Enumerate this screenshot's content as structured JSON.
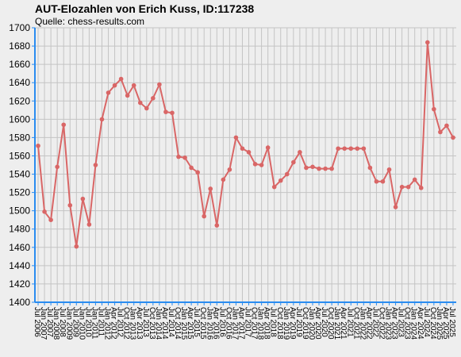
{
  "chart_data": {
    "type": "line",
    "title": "AUT-Elozahlen von Erich Kuss, ID:117238",
    "subtitle": "Quelle: chess-results.com",
    "categories": [
      "Jul 2006",
      "Jan 2007",
      "Jul 2007",
      "Jan 2008",
      "Jul 2008",
      "Jan 2009",
      "Jul 2009",
      "Jan 2010",
      "Jul 2010",
      "Jan 2011",
      "Jul 2011",
      "Jan 2012",
      "Apr 2012",
      "Jul 2012",
      "Oct 2012",
      "Jan 2013",
      "Apr 2013",
      "Jul 2013",
      "Oct 2013",
      "Jan 2014",
      "Apr 2014",
      "Jul 2014",
      "Oct 2014",
      "Jan 2015",
      "Apr 2015",
      "Jul 2015",
      "Oct 2015",
      "Jan 2016",
      "Apr 2016",
      "Jul 2016",
      "Oct 2016",
      "Jan 2017",
      "Apr 2017",
      "Jul 2017",
      "Oct 2017",
      "Jan 2018",
      "Apr 2018",
      "Jul 2018",
      "Oct 2018",
      "Jan 2019",
      "Apr 2019",
      "Jul 2019",
      "Oct 2019",
      "Jan 2020",
      "Apr 2020",
      "Jul 2020",
      "Oct 2020",
      "Jan 2021",
      "Apr 2021",
      "Jul 2021",
      "Oct 2021",
      "Jan 2022",
      "Apr 2022",
      "Jul 2022",
      "Oct 2022",
      "Jan 2023",
      "Apr 2023",
      "Jul 2023",
      "Oct 2023",
      "Jan 2024",
      "Apr 2024",
      "Jul 2024",
      "Oct 2024",
      "Jan 2025",
      "Apr 2025",
      "Jul 2025"
    ],
    "values": [
      1571,
      1499,
      1490,
      1548,
      1594,
      1506,
      1461,
      1513,
      1485,
      1550,
      1600,
      1629,
      1637,
      1644,
      1626,
      1637,
      1618,
      1612,
      1623,
      1638,
      1608,
      1607,
      1559,
      1558,
      1547,
      1542,
      1494,
      1524,
      1484,
      1534,
      1545,
      1580,
      1568,
      1564,
      1551,
      1550,
      1569,
      1526,
      1533,
      1540,
      1553,
      1564,
      1547,
      1548,
      1546,
      1546,
      1546,
      1568,
      1568,
      1568,
      1568,
      1568,
      1547,
      1532,
      1532,
      1545,
      1504,
      1526,
      1526,
      1534,
      1525,
      1684,
      1611,
      1586,
      1593,
      1580
    ],
    "color": "#d96666",
    "ylim": [
      1400,
      1700
    ],
    "yticks": [
      1400,
      1420,
      1440,
      1460,
      1480,
      1500,
      1520,
      1540,
      1560,
      1580,
      1600,
      1620,
      1640,
      1660,
      1680,
      1700
    ],
    "grid": true
  }
}
